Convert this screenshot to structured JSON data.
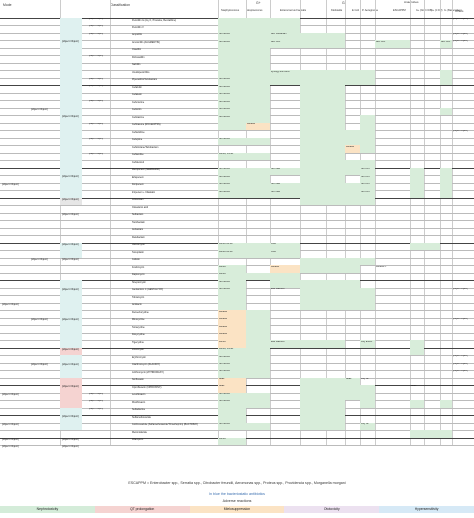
{
  "colors": {
    "green": "#d4ecd9",
    "pink": "#f5d3d1",
    "orange": "#fbe3c4",
    "purple": "#ece1f0",
    "blue": "#d6e9f6",
    "teal_group": "#dff1f0",
    "grey_group": "#e6e6e6"
  },
  "header": {
    "col_mode": "Mode",
    "col_class": "Classification",
    "gp": "G+",
    "gn": "G-",
    "anaerobes": "Anaerobes",
    "staph": "Staphylococcus",
    "strep": "Streptococcus",
    "entero": "Enterococcus Faecalis",
    "kleb": "Klebsiella",
    "ecoli": "E Coli",
    "paer": "P. Aeruginosa",
    "escapppm": "ESCAPPM",
    "gp_anaer": "G+ (Not C Diff)",
    "cdiff": "G+ (C Diff)",
    "gn_bact": "G- (Bacteroides)",
    "others": "Others"
  },
  "modes": [
    {
      "text": "Cell wall synthesis"
    },
    {
      "text": "β-lactams"
    },
    {
      "text": "Not lactams"
    },
    {
      "text": "Protein synthesis"
    },
    {
      "text": "30S"
    },
    {
      "text": "50S"
    },
    {
      "text": "DNA topoisomerases"
    },
    {
      "text": "Folic acid synthesis"
    },
    {
      "text": "DNA replication"
    },
    {
      "text": "mRNA synthesis"
    }
  ],
  "classes": [
    {
      "text": "Penicillins"
    },
    {
      "text": "Cephalosporins"
    },
    {
      "text": "Carbapenems"
    },
    {
      "text": "Monobactams"
    },
    {
      "text": "β-lactamase inhibitors"
    },
    {
      "text": "Glycopeptides"
    },
    {
      "text": "Others"
    },
    {
      "text": "Aminoglycosides"
    },
    {
      "text": "Tetracyclines"
    },
    {
      "text": "Lincosamides"
    },
    {
      "text": "Macrolides"
    },
    {
      "text": "Fluoroquinolones"
    },
    {
      "text": "Sulfonamides"
    },
    {
      "text": "Metronidazole"
    },
    {
      "text": "Rifampicin"
    }
  ],
  "subclasses": [
    {
      "text": "Penicillinase-sensitive"
    },
    {
      "text": "Natural penicillins (narrow spectrum)"
    },
    {
      "text": "Aminopenicillins (broad spectrum)"
    },
    {
      "text": "Penicillinase-resistant (very narrow spectrum)"
    },
    {
      "text": "Antipseudomonal"
    },
    {
      "text": "1st gen"
    },
    {
      "text": "2nd gen"
    },
    {
      "text": "3rd gen"
    },
    {
      "text": "4th gen"
    },
    {
      "text": "5th gen"
    },
    {
      "text": "2nd gen"
    },
    {
      "text": "3rd gen"
    },
    {
      "text": "4th gen"
    }
  ],
  "drugs": [
    "Penicillin G (Aq, K, Procaine, Benzathine)",
    "Penicillin V",
    "Ampicillin",
    "Amoxicillin (AUGMENTIN)",
    "Oxacillin",
    "Dicloxacillin",
    "Nafcillin",
    "Ureidopenicillins",
    "Piperacillin/Tazobactam",
    "Cefazolin",
    "Cefalexin",
    "Cefuroxime",
    "Cefoxitin",
    "Cefotaxime",
    "Ceftriaxone (ROCEFPHIN)",
    "Ceftazidime",
    "Cefepime",
    "Ceftolozane/Tazobactam",
    "Ceftaroline",
    "Cefiderocol",
    "Meropenem (MERREMM)",
    "Ertapenem",
    "Doripenem",
    "Imipenem + Cilastatin",
    "Aztreonam",
    "Clavulanic acid",
    "Sulbactam",
    "Tazobactam",
    "Avibactam",
    "Relebactam",
    "Vancomycin",
    "Teicoplanin",
    "Colistin",
    "Fosfomycin",
    "Daptomycin",
    "Streptomycin",
    "Gentamicin C (GENTALYN®)",
    "Tobramycin",
    "Amikacin",
    "Demeclocycline",
    "Minocycline",
    "Tetracycline",
    "Doxycycline",
    "Tigecycline",
    "Lincomycin",
    "Erythromycin",
    "Clarithromycin (KLACID®)",
    "Azithromycin (ZITHROMAX®)",
    "Norfloxacin",
    "Ciprofloxacin (CIPROXIN®)",
    "Levofloxacin",
    "Moxifloxacin",
    "Sulfadiazine",
    "Sulfamethoxazole",
    "Cotrimoxazole (Sulfamethoxazole/Trimethoprim) (BACTRIM®)",
    "Metronidazole",
    "Rifampicin"
  ],
  "cell_notes": {
    "not_mrsa": "Not MRSA",
    "mrsa": "MRSA",
    "mrsa_vrsa": "MRSA, VRSA",
    "mrsa_vrsa2": "MRSA VRSA",
    "with_sulb": "with Sulbactam",
    "synergy": "synergy with AMG",
    "with_cla": "with CLA",
    "with_cla_appr": "with CLA (only APPR)",
    "variable": "variable",
    "not_vre": "Not VRE",
    "not_kpc": "Not KPC",
    "vre": "VRE",
    "also_faecium": "also Faecium",
    "only_esca": "only ESCA",
    "weak": "weak",
    "only_sp": "only SP",
    "variable_c": "variable C"
  },
  "others": [
    {
      "text": "Treponema"
    },
    {
      "text": "Listeria"
    },
    {
      "text": "Pasteurella"
    },
    {
      "text": "Neisseriae"
    },
    {
      "text": "Brucella"
    },
    {
      "text": "Chlamydia, Rickettsia, Mycoplasma, Borrelia, Brucella, V. Cholerae"
    },
    {
      "text": "B. Pertussis, C. Diphteriae"
    },
    {
      "text": "B. Pertussis, C. Diphteriae, H. Pylori"
    },
    {
      "text": "B. Pertussis, C. Diphteriae, Legionella, Mycoplasma"
    }
  ],
  "footer": {
    "escappm_def": "ESCAPPM = Enterobacter spp., Serratia spp., Citrobacter freundii, Aeromonas spp., Proteus spp., Providencia spp., Morganella morgani",
    "bacteriostatic": "In blue the bacteriostatic antibiotics",
    "adverse": "Adverse reactions"
  },
  "legend": [
    {
      "label": "Nephrotoxicity",
      "color": "#d4ecd9"
    },
    {
      "label": "QT prolongation",
      "color": "#f5d3d1"
    },
    {
      "label": "Mielosuppression",
      "color": "#fbe3c4"
    },
    {
      "label": "Ototoxicity",
      "color": "#ece1f0"
    },
    {
      "label": "Hypersensitivity",
      "color": "#d6e9f6"
    }
  ]
}
